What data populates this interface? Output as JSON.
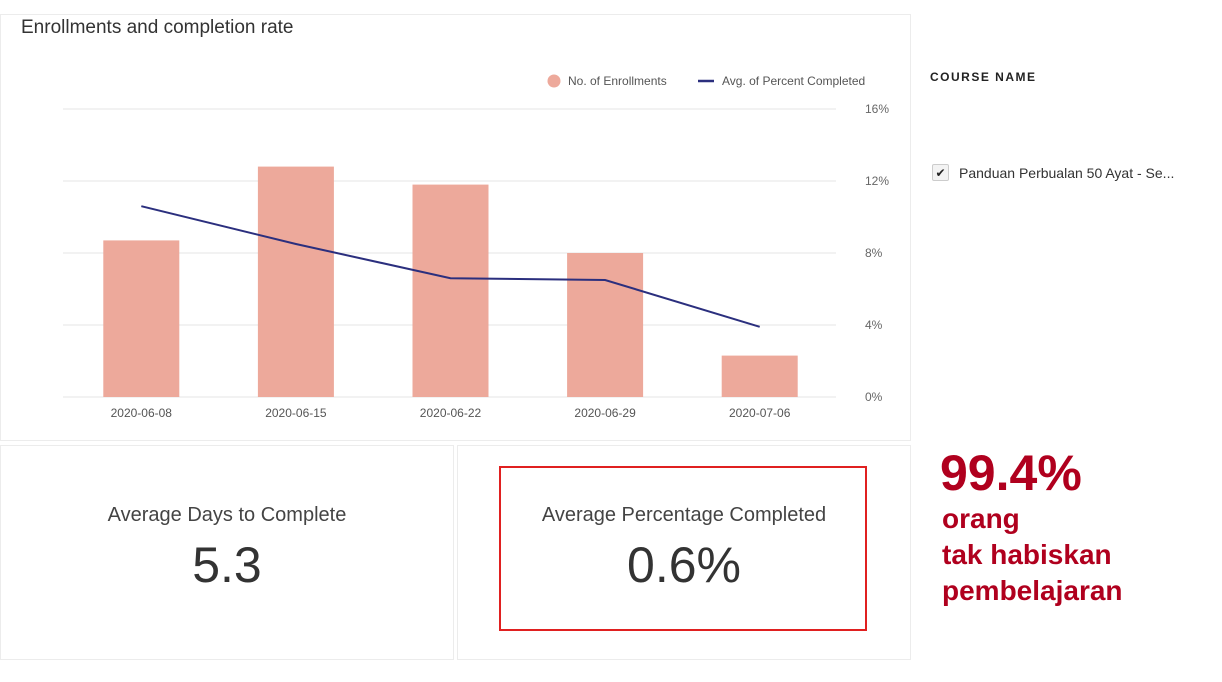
{
  "chart_data": {
    "type": "bar",
    "title": "Enrollments and completion rate",
    "categories": [
      "2020-06-08",
      "2020-06-15",
      "2020-06-22",
      "2020-06-29",
      "2020-07-06"
    ],
    "series": [
      {
        "name": "No. of Enrollments",
        "type": "bar",
        "color": "#eda99b",
        "values": [
          8.7,
          12.8,
          11.8,
          8.0,
          2.3
        ]
      },
      {
        "name": "Avg. of Percent Completed",
        "type": "line",
        "color": "#2b2f7e",
        "values": [
          10.6,
          8.5,
          6.6,
          6.5,
          3.9
        ]
      }
    ],
    "y_right": {
      "ticks": [
        "0%",
        "4%",
        "8%",
        "12%",
        "16%"
      ],
      "tick_values": [
        0,
        4,
        8,
        12,
        16
      ],
      "range": [
        0,
        16
      ]
    },
    "grid": true,
    "legend": "top-right"
  },
  "filter": {
    "title": "COURSE NAME",
    "items": [
      {
        "label": "Panduan Perbualan 50 Ayat - Se...",
        "checked": true
      }
    ]
  },
  "cards": [
    {
      "label": "Average Days to Complete",
      "value": "5.3"
    },
    {
      "label": "Average Percentage Completed",
      "value": "0.6%"
    }
  ],
  "annotation": {
    "headline": "99.4%",
    "lines": [
      "orang",
      "tak habiskan",
      "pembelajaran"
    ]
  }
}
